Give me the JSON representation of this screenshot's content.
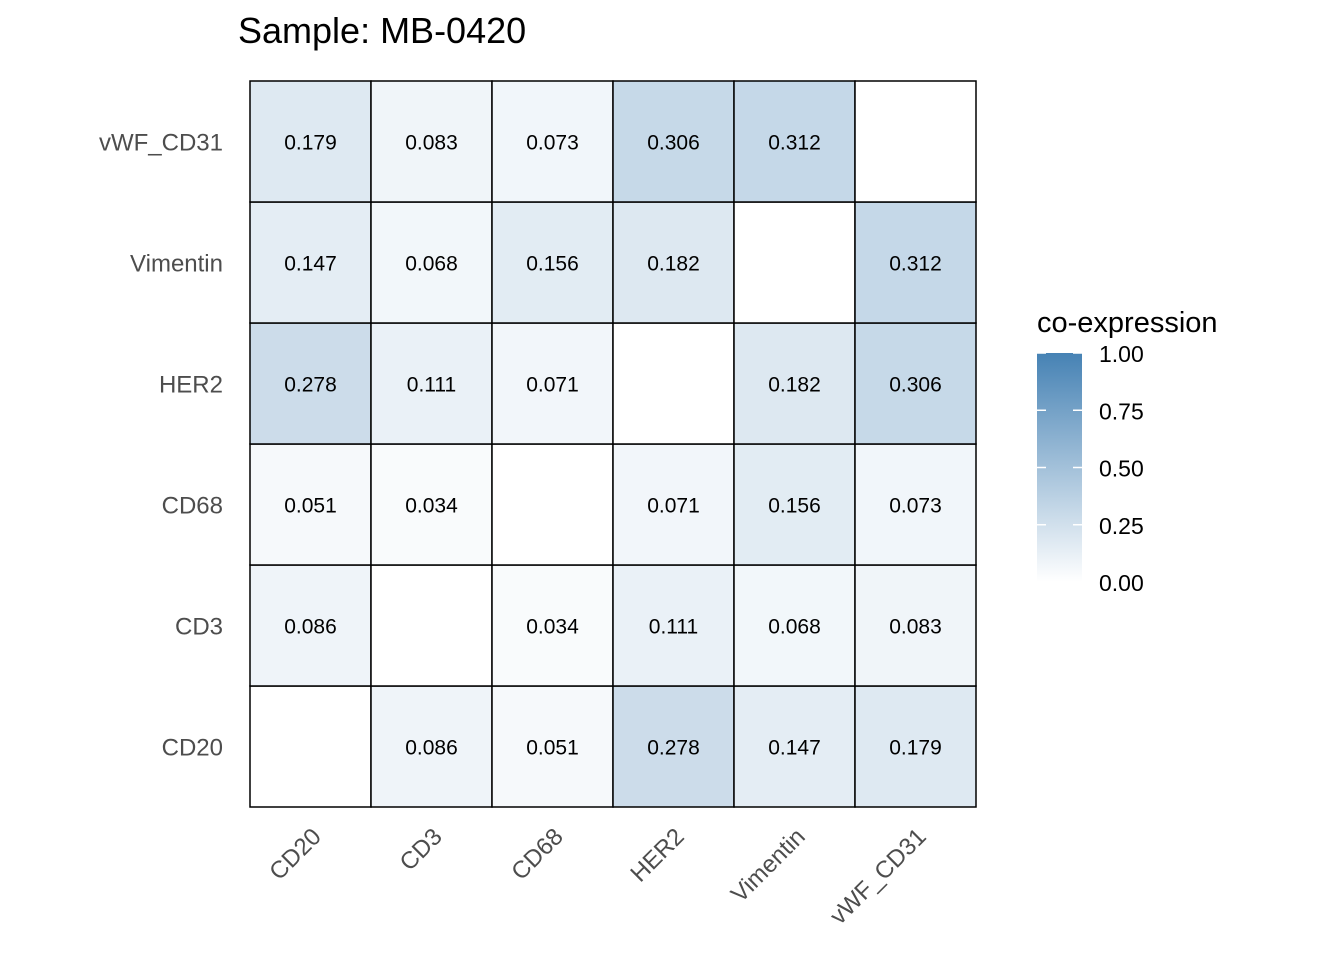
{
  "chart_data": {
    "type": "heatmap",
    "title": "Sample: MB-0420",
    "x_categories": [
      "CD20",
      "CD3",
      "CD68",
      "HER2",
      "Vimentin",
      "vWF_CD31"
    ],
    "y_categories": [
      "CD20",
      "CD3",
      "CD68",
      "HER2",
      "Vimentin",
      "vWF_CD31"
    ],
    "values": [
      [
        null,
        0.086,
        0.051,
        0.278,
        0.147,
        0.179
      ],
      [
        0.086,
        null,
        0.034,
        0.111,
        0.068,
        0.083
      ],
      [
        0.051,
        0.034,
        null,
        0.071,
        0.156,
        0.073
      ],
      [
        0.278,
        0.111,
        0.071,
        null,
        0.182,
        0.306
      ],
      [
        0.147,
        0.068,
        0.156,
        0.182,
        null,
        0.312
      ],
      [
        0.179,
        0.083,
        0.073,
        0.306,
        0.312,
        null
      ]
    ],
    "value_labels": [
      [
        null,
        "0.086",
        "0.051",
        "0.278",
        "0.147",
        "0.179"
      ],
      [
        "0.086",
        null,
        "0.034",
        "0.111",
        "0.068",
        "0.083"
      ],
      [
        "0.051",
        "0.034",
        null,
        "0.071",
        "0.156",
        "0.073"
      ],
      [
        "0.278",
        "0.111",
        "0.071",
        null,
        "0.182",
        "0.306"
      ],
      [
        "0.147",
        "0.068",
        "0.156",
        "0.182",
        null,
        "0.312"
      ],
      [
        "0.179",
        "0.083",
        "0.073",
        "0.306",
        "0.312",
        null
      ]
    ],
    "legend": {
      "title": "co-expression",
      "ticks": [
        "0.00",
        "0.25",
        "0.50",
        "0.75",
        "1.00"
      ],
      "range": [
        0,
        1
      ],
      "low_color": "#ffffff",
      "high_color": "#4682b4",
      "placement": "right"
    },
    "xlabel": "",
    "ylabel": ""
  }
}
